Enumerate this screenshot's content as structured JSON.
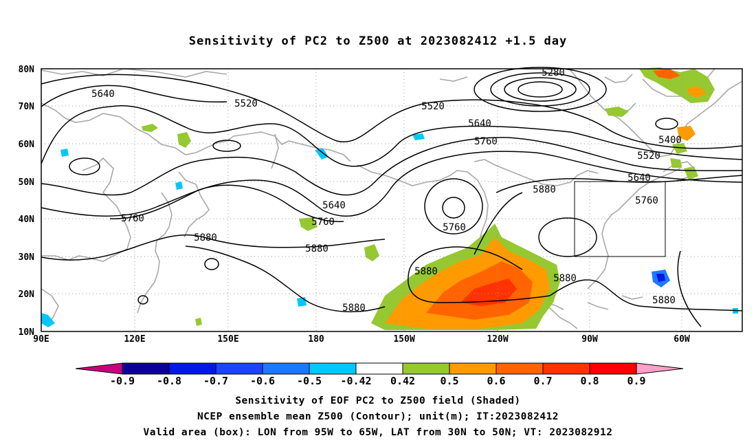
{
  "title": "Sensitivity of PC2 to Z500 at 2023082412 +1.5 day",
  "lat_labels": [
    "80N",
    "70N",
    "60N",
    "50N",
    "40N",
    "30N",
    "20N",
    "10N"
  ],
  "lon_labels": [
    "90E",
    "120E",
    "150E",
    "180",
    "150W",
    "120W",
    "90W",
    "60W"
  ],
  "contour_labels": [
    {
      "text": "5280"
    },
    {
      "text": "5640"
    },
    {
      "text": "5520"
    },
    {
      "text": "5520"
    },
    {
      "text": "5640"
    },
    {
      "text": "5760"
    },
    {
      "text": "5400"
    },
    {
      "text": "5520"
    },
    {
      "text": "5640"
    },
    {
      "text": "5880"
    },
    {
      "text": "5760"
    },
    {
      "text": "5640"
    },
    {
      "text": "5760"
    },
    {
      "text": "5760"
    },
    {
      "text": "5760"
    },
    {
      "text": "5880"
    },
    {
      "text": "5880"
    },
    {
      "text": "5880"
    },
    {
      "text": "5880"
    },
    {
      "text": "5880"
    },
    {
      "text": "5880"
    }
  ],
  "colorbar": {
    "labels": [
      "-0.9",
      "-0.8",
      "-0.7",
      "-0.6",
      "-0.5",
      "-0.42",
      "0.42",
      "0.5",
      "0.6",
      "0.7",
      "0.8",
      "0.9"
    ],
    "colors": [
      "#c8007c",
      "#0a0096",
      "#0018e6",
      "#1a46ff",
      "#1e78ff",
      "#00c8ff",
      "#ffffff",
      "#96c832",
      "#ff9b00",
      "#ff6400",
      "#ff3200",
      "#ff0000",
      "#ffa0c8"
    ]
  },
  "captions": [
    "Sensitivity of EOF PC2 to Z500 field (Shaded)",
    "NCEP ensemble mean Z500 (Contour); unit(m); IT:2023082412",
    "Valid area (box): LON from 95W to 65W, LAT from 30N to 50N; VT: 2023082912"
  ],
  "valid_area": {
    "lon_range": [
      "95W",
      "65W"
    ],
    "lat_range": [
      "30N",
      "50N"
    ]
  }
}
